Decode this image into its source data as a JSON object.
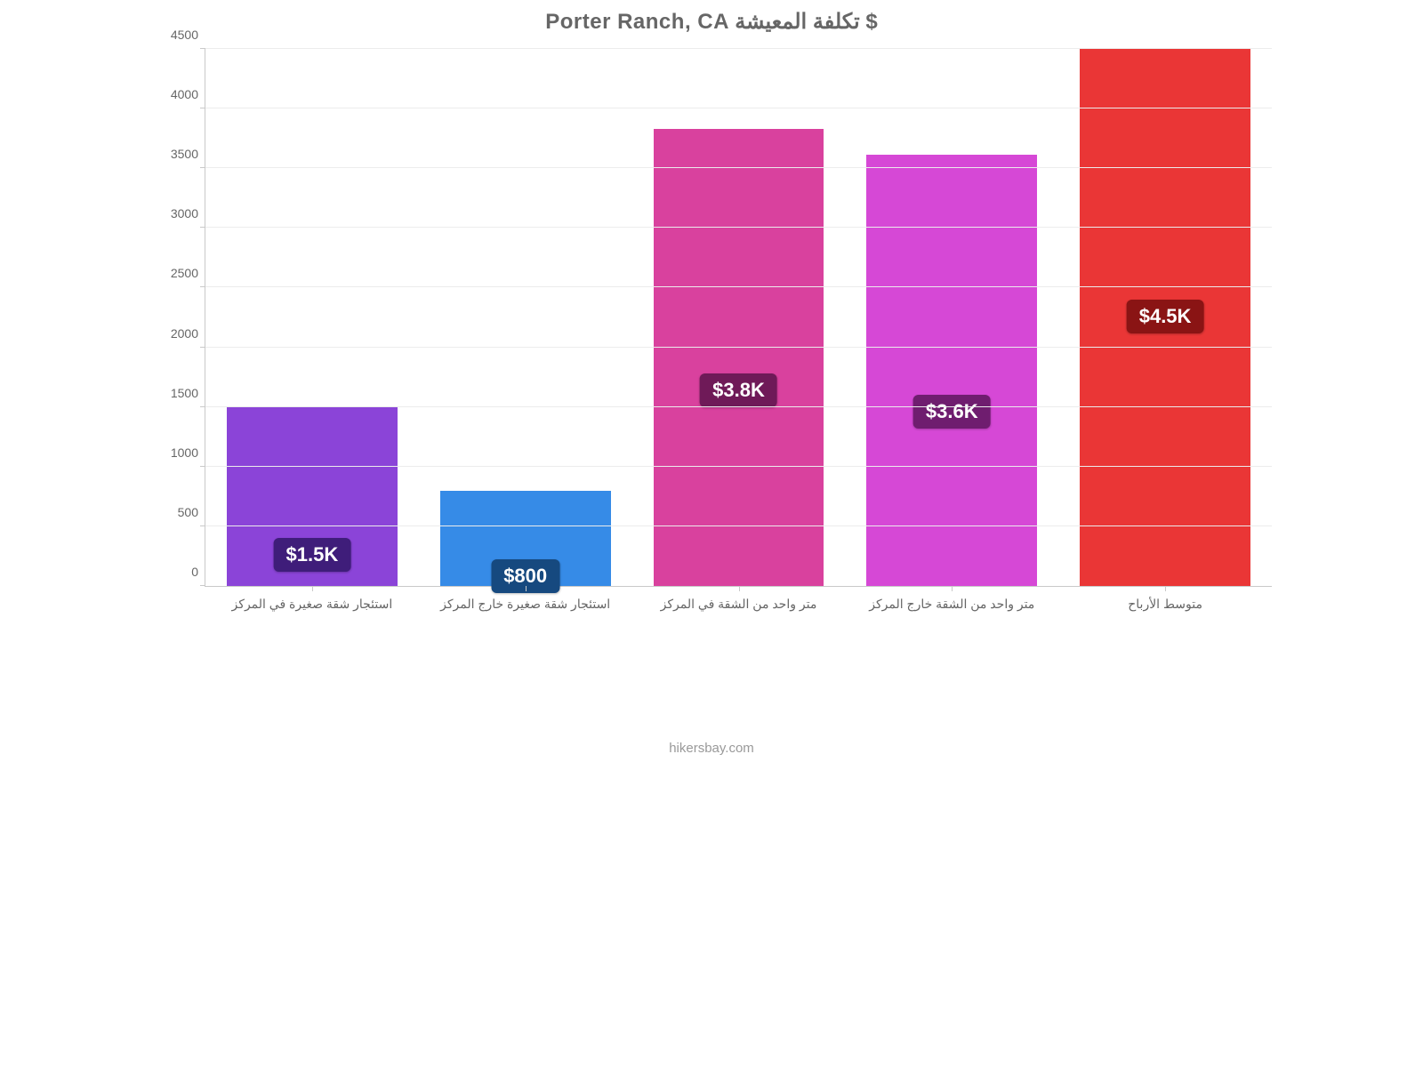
{
  "chart": {
    "type": "bar",
    "title": "Porter Ranch, CA تكلفة المعيشة $",
    "title_color": "#666666",
    "title_fontsize": 24,
    "background_color": "#ffffff",
    "axis_color": "#c9c9c9",
    "grid_color": "#ececec",
    "tick_label_color": "#666666",
    "tick_fontsize": 14,
    "cat_label_fontsize": 14,
    "badge_fontsize": 22,
    "ylim": [
      0,
      4500
    ],
    "ytick_step": 500,
    "bar_width_ratio": 0.8,
    "categories": [
      "استئجار شقة صغيرة في المركز",
      "استئجار شقة صغيرة خارج المركز",
      "متر واحد من الشقة في المركز",
      "متر واحد من الشقة خارج المركز",
      "متوسط الأرباح"
    ],
    "values": [
      1500,
      800,
      3833,
      3617,
      4500
    ],
    "value_labels": [
      "$1.5K",
      "$800",
      "$3.8K",
      "$3.6K",
      "$4.5K"
    ],
    "bar_colors": [
      "#8b44d8",
      "#368be7",
      "#d9419e",
      "#d648d6",
      "#ea3636"
    ],
    "badge_colors": [
      "#3f1d7a",
      "#16497f",
      "#6f1a58",
      "#6f1d6f",
      "#8a1414"
    ],
    "badge_text_color": "#ffffff",
    "source": "hikersbay.com",
    "source_color": "#999999",
    "source_fontsize": 15
  }
}
